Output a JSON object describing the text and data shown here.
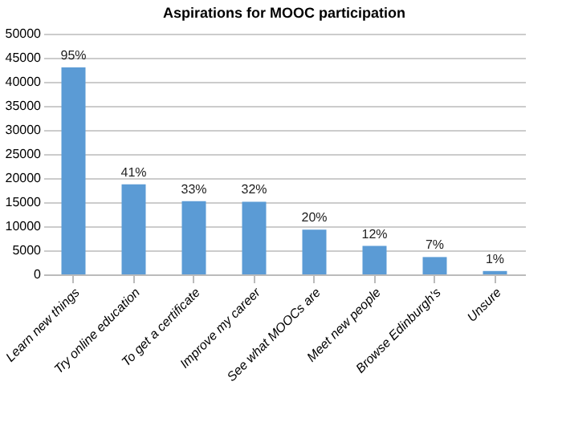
{
  "chart_data": {
    "type": "bar",
    "title": "Aspirations for MOOC participation",
    "categories": [
      "Learn new things",
      "Try online education",
      "To get a certificate",
      "Improve my career",
      "See what MOOCs are",
      "Meet new people",
      "Browse Edinburgh's",
      "Unsure"
    ],
    "values": [
      43000,
      18700,
      15200,
      15100,
      9300,
      5900,
      3600,
      700
    ],
    "annotations": [
      {
        "text": "95%",
        "x": "Learn new things",
        "y": 43000
      },
      {
        "text": "41%",
        "x": "Try online education",
        "y": 18700
      },
      {
        "text": "33%",
        "x": "To get a certificate",
        "y": 15200
      },
      {
        "text": "32%",
        "x": "Improve my career",
        "y": 15100
      },
      {
        "text": "20%",
        "x": "See what MOOCs are",
        "y": 9300
      },
      {
        "text": "12%",
        "x": "Meet new people",
        "y": 5900
      },
      {
        "text": "7%",
        "x": "Browse Edinburgh's",
        "y": 3600
      },
      {
        "text": "1%",
        "x": "Unsure",
        "y": 700
      }
    ],
    "color": "#5b9bd5",
    "ylim": [
      0,
      50000
    ],
    "yticks": [
      0,
      5000,
      10000,
      15000,
      20000,
      25000,
      30000,
      35000,
      40000,
      45000,
      50000
    ],
    "grid": "y"
  }
}
